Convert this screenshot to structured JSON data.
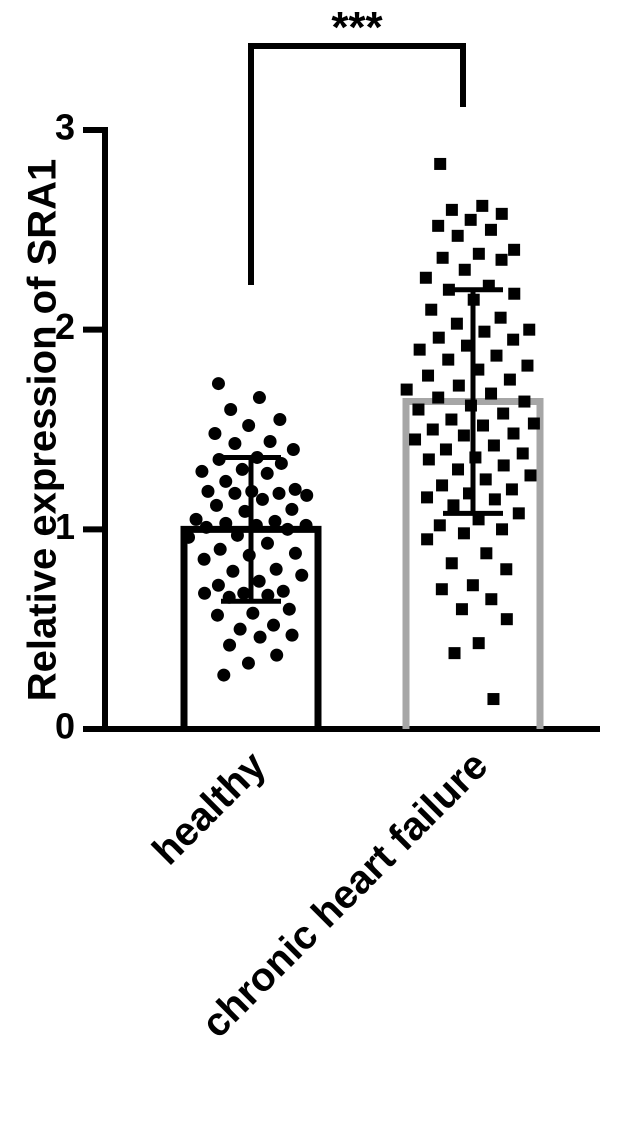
{
  "chart_data": {
    "type": "bar",
    "title": "",
    "xlabel": "",
    "ylabel": "Relative expression of SRA1",
    "ylim": [
      0,
      3
    ],
    "yticks": [
      "0",
      "1",
      "2",
      "3"
    ],
    "grid": false,
    "categories": [
      "healthy",
      "chronic heart failure"
    ],
    "means": [
      1.0,
      1.64
    ],
    "sd": [
      0.36,
      0.56
    ],
    "bar_colors": [
      "#000000",
      "#a6a6a6"
    ],
    "point_color": "#000000",
    "points": [
      {
        "group": "healthy",
        "marker": "circle",
        "values": [
          1.73,
          1.66,
          1.6,
          1.55,
          1.52,
          1.48,
          1.44,
          1.43,
          1.4,
          1.36,
          1.35,
          1.33,
          1.3,
          1.29,
          1.28,
          1.24,
          1.2,
          1.19,
          1.19,
          1.18,
          1.18,
          1.17,
          1.15,
          1.12,
          1.1,
          1.09,
          1.05,
          1.04,
          1.03,
          1.02,
          1.02,
          1.01,
          1.0,
          0.97,
          0.96,
          0.93,
          0.9,
          0.88,
          0.87,
          0.85,
          0.8,
          0.79,
          0.77,
          0.74,
          0.72,
          0.69,
          0.68,
          0.68,
          0.67,
          0.66,
          0.6,
          0.58,
          0.57,
          0.52,
          0.5,
          0.47,
          0.46,
          0.42,
          0.37,
          0.33,
          0.27
        ]
      },
      {
        "group": "chronic heart failure",
        "marker": "square",
        "values": [
          2.83,
          2.62,
          2.6,
          2.58,
          2.55,
          2.52,
          2.5,
          2.47,
          2.4,
          2.38,
          2.36,
          2.35,
          2.3,
          2.26,
          2.22,
          2.2,
          2.18,
          2.15,
          2.1,
          2.06,
          2.03,
          2.0,
          1.99,
          1.96,
          1.95,
          1.92,
          1.9,
          1.87,
          1.85,
          1.82,
          1.8,
          1.77,
          1.75,
          1.72,
          1.7,
          1.68,
          1.66,
          1.64,
          1.62,
          1.6,
          1.58,
          1.55,
          1.53,
          1.52,
          1.5,
          1.48,
          1.47,
          1.45,
          1.42,
          1.4,
          1.38,
          1.36,
          1.35,
          1.32,
          1.3,
          1.27,
          1.25,
          1.22,
          1.2,
          1.18,
          1.16,
          1.15,
          1.12,
          1.08,
          1.05,
          1.02,
          1.0,
          0.98,
          0.95,
          0.88,
          0.83,
          0.8,
          0.72,
          0.7,
          0.65,
          0.6,
          0.55,
          0.43,
          0.38,
          0.15
        ]
      }
    ],
    "significance": {
      "label": "***",
      "between": [
        "healthy",
        "chronic heart failure"
      ]
    }
  }
}
